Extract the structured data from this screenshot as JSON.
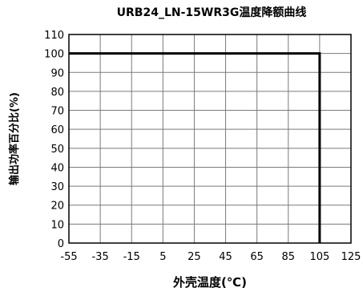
{
  "chart_data": {
    "type": "line",
    "title": "URB24_LN-15WR3G温度降额曲线",
    "xlabel": "外壳温度(℃)",
    "ylabel": "输出功率百分比(%)",
    "xlim": [
      -55,
      125
    ],
    "ylim": [
      0,
      110
    ],
    "x_ticks": [
      "-55",
      "-35",
      "-15",
      "5",
      "25",
      "45",
      "65",
      "85",
      "105",
      "125"
    ],
    "y_ticks": [
      "0",
      "10",
      "20",
      "30",
      "40",
      "50",
      "60",
      "70",
      "80",
      "90",
      "100",
      "110"
    ],
    "grid": true,
    "series": [
      {
        "x": [
          -55,
          105,
          105
        ],
        "y": [
          100,
          100,
          0
        ],
        "color": "#000000"
      }
    ]
  }
}
